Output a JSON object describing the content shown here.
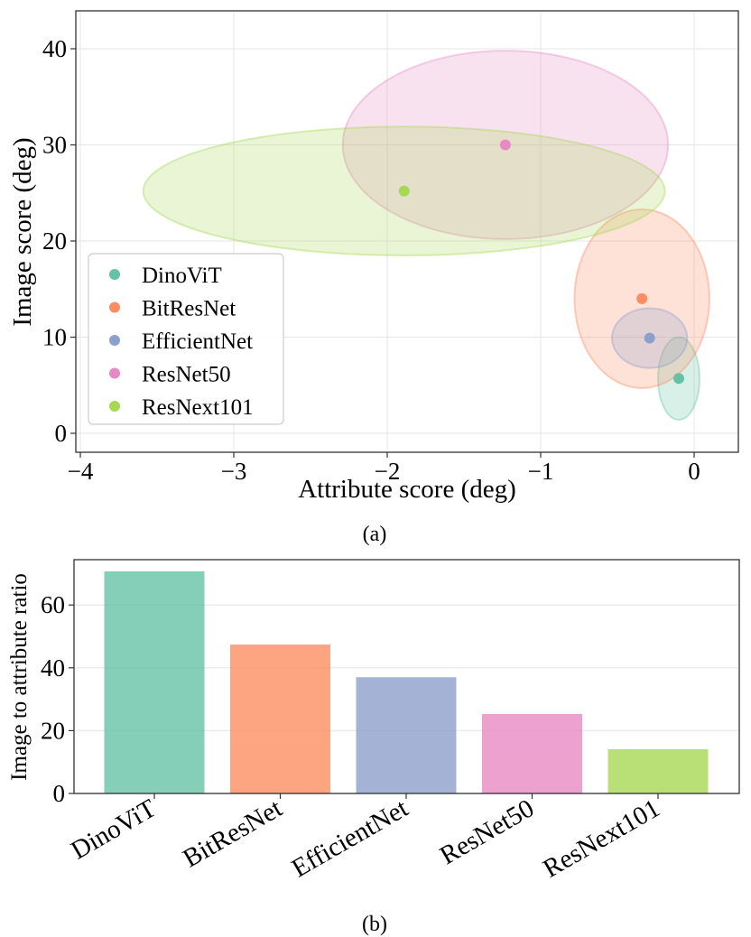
{
  "chart_data": [
    {
      "type": "scatter",
      "caption": "(a)",
      "xlabel": "Attribute score (deg)",
      "ylabel": "Image score (deg)",
      "xlim": [
        -4,
        0.3
      ],
      "ylim": [
        -0.5,
        44
      ],
      "xticks": [
        -4,
        -3,
        -2,
        -1,
        0
      ],
      "xtick_labels": [
        "−4",
        "−3",
        "−2",
        "−1",
        "0"
      ],
      "yticks": [
        0,
        10,
        20,
        30,
        40
      ],
      "ytick_labels": [
        "0",
        "10",
        "20",
        "30",
        "40"
      ],
      "grid": true,
      "legend_position": "lower-left",
      "series": [
        {
          "name": "DinoViT",
          "color": "#66c2a5",
          "x": -0.1,
          "y": 5.7,
          "x_spread": 0.135,
          "y_spread": 4.3
        },
        {
          "name": "BitResNet",
          "color": "#fc8d62",
          "x": -0.34,
          "y": 14.0,
          "x_spread": 0.44,
          "y_spread": 9.3
        },
        {
          "name": "EfficientNet",
          "color": "#8da0cb",
          "x": -0.29,
          "y": 9.9,
          "x_spread": 0.245,
          "y_spread": 3.1
        },
        {
          "name": "ResNet50",
          "color": "#e78ac3",
          "x": -1.23,
          "y": 30.0,
          "x_spread": 1.06,
          "y_spread": 9.8
        },
        {
          "name": "ResNext101",
          "color": "#a6d854",
          "x": -1.89,
          "y": 25.2,
          "x_spread": 1.7,
          "y_spread": 6.7
        }
      ]
    },
    {
      "type": "bar",
      "caption": "(b)",
      "xlabel": "",
      "ylabel": "Image to attribute ratio",
      "ylim": [
        0,
        73.5
      ],
      "yticks": [
        0,
        20,
        40,
        60
      ],
      "ytick_labels": [
        "0",
        "20",
        "40",
        "60"
      ],
      "grid": true,
      "categories": [
        "DinoViT",
        "BitResNet",
        "EfficientNet",
        "ResNet50",
        "ResNext101"
      ],
      "values": [
        70.7,
        47.4,
        37.0,
        25.3,
        14.1
      ],
      "colors": [
        "#66c2a5",
        "#fc8d62",
        "#8da0cb",
        "#e78ac3",
        "#a6d854"
      ]
    }
  ]
}
